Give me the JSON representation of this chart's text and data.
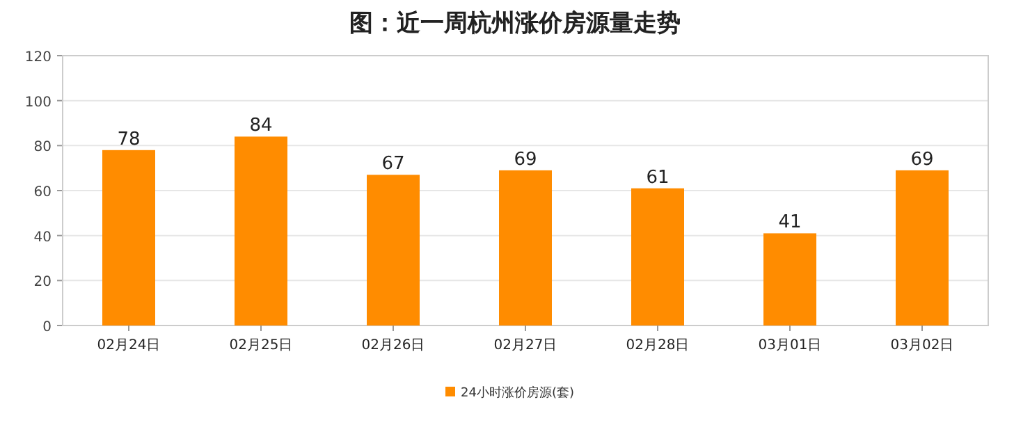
{
  "chart_data": {
    "type": "bar",
    "title": "图：近一周杭州涨价房源量走势",
    "categories": [
      "02月24日",
      "02月25日",
      "02月26日",
      "02月27日",
      "02月28日",
      "03月01日",
      "03月02日"
    ],
    "series": [
      {
        "name": "24小时涨价房源(套)",
        "color": "#ff8c00",
        "values": [
          78,
          84,
          67,
          69,
          61,
          41,
          69
        ]
      }
    ],
    "ylim": [
      0,
      120
    ],
    "yticks": [
      0,
      20,
      40,
      60,
      80,
      100,
      120
    ],
    "grid": "y",
    "legend": "bottom",
    "data_labels": true
  }
}
